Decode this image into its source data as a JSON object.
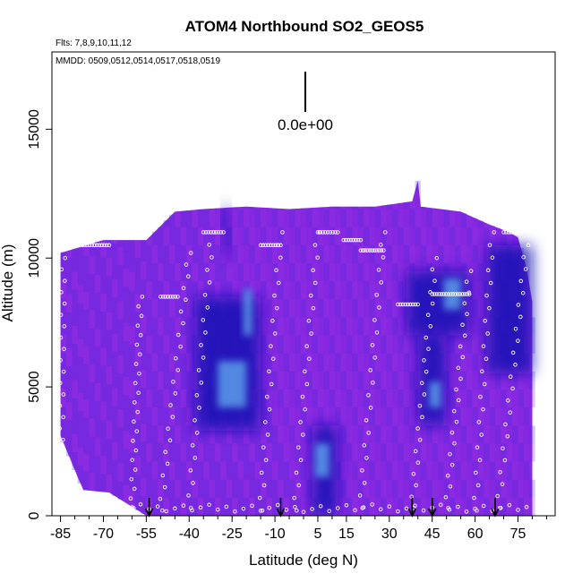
{
  "chart_data": {
    "type": "heatmap",
    "title": "ATOM4 Northbound SO2_GEOS5",
    "flights_label": "Flts: 7,8,9,10,11,12",
    "dates_label": "MMDD: 0509,0512,0514,0517,0518,0519",
    "scale_label": "0.0e+00",
    "xlabel": "Latitude (deg N)",
    "ylabel": "Altitude (m)",
    "xlim": [
      -88,
      88
    ],
    "ylim": [
      0,
      18000
    ],
    "x_ticks": [
      -85,
      -70,
      -55,
      -40,
      -25,
      -10,
      5,
      15,
      30,
      45,
      60,
      75
    ],
    "x_tick_labels": [
      "-85",
      "-70",
      "-55",
      "-40",
      "-25",
      "-10",
      "5",
      "15",
      "30",
      "45",
      "60",
      "75"
    ],
    "x_minor_ticks": [
      -80,
      -75,
      -65,
      -60,
      -50,
      -45,
      -35,
      -30,
      -20,
      -15,
      -5,
      0,
      10,
      20,
      25,
      35,
      40,
      50,
      55,
      65,
      70,
      80,
      85
    ],
    "y_ticks": [
      0,
      5000,
      10000,
      15000
    ],
    "y_tick_labels": [
      "0",
      "5000",
      "10000",
      "15000"
    ],
    "grid": false,
    "colors": {
      "background_field": "#8a2be2",
      "low": "#7a1fe0",
      "mid": "#3a22d8",
      "dark": "#1010b0",
      "high": "#5a9ce8",
      "track_points": "#ffffff",
      "arrows": "#000000"
    },
    "field_top_envelope": [
      {
        "lat": -85,
        "alt": 10200
      },
      {
        "lat": -70,
        "alt": 10700
      },
      {
        "lat": -55,
        "alt": 10700
      },
      {
        "lat": -45,
        "alt": 11800
      },
      {
        "lat": -35,
        "alt": 11900
      },
      {
        "lat": -20,
        "alt": 12000
      },
      {
        "lat": -5,
        "alt": 11900
      },
      {
        "lat": 10,
        "alt": 12000
      },
      {
        "lat": 25,
        "alt": 12000
      },
      {
        "lat": 38,
        "alt": 12200
      },
      {
        "lat": 40,
        "alt": 13000
      },
      {
        "lat": 41,
        "alt": 12000
      },
      {
        "lat": 55,
        "alt": 11800
      },
      {
        "lat": 65,
        "alt": 11300
      },
      {
        "lat": 72,
        "alt": 11000
      },
      {
        "lat": 75,
        "alt": 10800
      },
      {
        "lat": 78,
        "alt": 9600
      },
      {
        "lat": 80,
        "alt": 8300
      }
    ],
    "field_bottom_envelope": [
      {
        "lat": -85,
        "alt": 3100
      },
      {
        "lat": -82,
        "alt": 2300
      },
      {
        "lat": -79,
        "alt": 1500
      },
      {
        "lat": -77,
        "alt": 1000
      },
      {
        "lat": -68,
        "alt": 900
      },
      {
        "lat": -55,
        "alt": 0
      },
      {
        "lat": 80,
        "alt": 0
      }
    ],
    "enhanced_regions": [
      {
        "lat_min": -38,
        "lat_max": -15,
        "alt_min": 3300,
        "alt_max": 8500,
        "level": "dark"
      },
      {
        "lat_min": -30,
        "lat_max": -20,
        "alt_min": 4200,
        "alt_max": 6000,
        "level": "high"
      },
      {
        "lat_min": -21,
        "lat_max": -18,
        "alt_min": 7000,
        "alt_max": 8800,
        "level": "high"
      },
      {
        "lat_min": -28,
        "lat_max": -26,
        "alt_min": 10000,
        "alt_max": 12000,
        "level": "dark"
      },
      {
        "lat_min": 3,
        "lat_max": 12,
        "alt_min": 0,
        "alt_max": 3500,
        "level": "dark"
      },
      {
        "lat_min": 4,
        "lat_max": 9,
        "alt_min": 1500,
        "alt_max": 2800,
        "level": "high"
      },
      {
        "lat_min": 36,
        "lat_max": 58,
        "alt_min": 7000,
        "alt_max": 9500,
        "level": "dark"
      },
      {
        "lat_min": 49,
        "lat_max": 55,
        "alt_min": 8000,
        "alt_max": 9200,
        "level": "high"
      },
      {
        "lat_min": 40,
        "lat_max": 50,
        "alt_min": 3500,
        "alt_max": 7000,
        "level": "dark"
      },
      {
        "lat_min": 44,
        "lat_max": 48,
        "alt_min": 4200,
        "alt_max": 5200,
        "level": "high"
      },
      {
        "lat_min": 64,
        "lat_max": 80,
        "alt_min": 5500,
        "alt_max": 10500,
        "level": "dark"
      }
    ],
    "flight_track_ascents": [
      {
        "lat_start": -85,
        "lat_end": -84,
        "alt_start": 300,
        "alt_end": 10000
      },
      {
        "lat_start": -60,
        "lat_end": -57,
        "alt_start": 300,
        "alt_end": 8500
      },
      {
        "lat_start": -50,
        "lat_end": -40,
        "alt_start": 200,
        "alt_end": 10200
      },
      {
        "lat_start": -40,
        "lat_end": -32,
        "alt_start": 300,
        "alt_end": 11000
      },
      {
        "lat_start": -15,
        "lat_end": -8,
        "alt_start": 200,
        "alt_end": 11000
      },
      {
        "lat_start": -3,
        "lat_end": 5,
        "alt_start": 200,
        "alt_end": 11000
      },
      {
        "lat_start": 20,
        "lat_end": 28,
        "alt_start": 300,
        "alt_end": 11000
      },
      {
        "lat_start": 38,
        "lat_end": 46,
        "alt_start": 300,
        "alt_end": 10000
      },
      {
        "lat_start": 50,
        "lat_end": 58,
        "alt_start": 300,
        "alt_end": 9500
      },
      {
        "lat_start": 60,
        "lat_end": 66,
        "alt_start": 200,
        "alt_end": 11000
      },
      {
        "lat_start": 68,
        "lat_end": 78,
        "alt_start": 300,
        "alt_end": 10500
      }
    ],
    "flight_track_legs": [
      {
        "lat_start": -80,
        "lat_end": -68,
        "alt": 10500
      },
      {
        "lat_start": -35,
        "lat_end": -28,
        "alt": 11000
      },
      {
        "lat_start": -15,
        "lat_end": -8,
        "alt": 10500
      },
      {
        "lat_start": 5,
        "lat_end": 12,
        "alt": 11000
      },
      {
        "lat_start": 14,
        "lat_end": 20,
        "alt": 10700
      },
      {
        "lat_start": 20,
        "lat_end": 28,
        "alt": 10300
      },
      {
        "lat_start": 45,
        "lat_end": 58,
        "alt": 8600
      },
      {
        "lat_start": 70,
        "lat_end": 76,
        "alt": 11000
      },
      {
        "lat_start": -50,
        "lat_end": -44,
        "alt": 8500
      },
      {
        "lat_start": 33,
        "lat_end": 40,
        "alt": 8200
      }
    ],
    "arrow_markers_lat": [
      -54,
      -8,
      38,
      45,
      67
    ]
  }
}
